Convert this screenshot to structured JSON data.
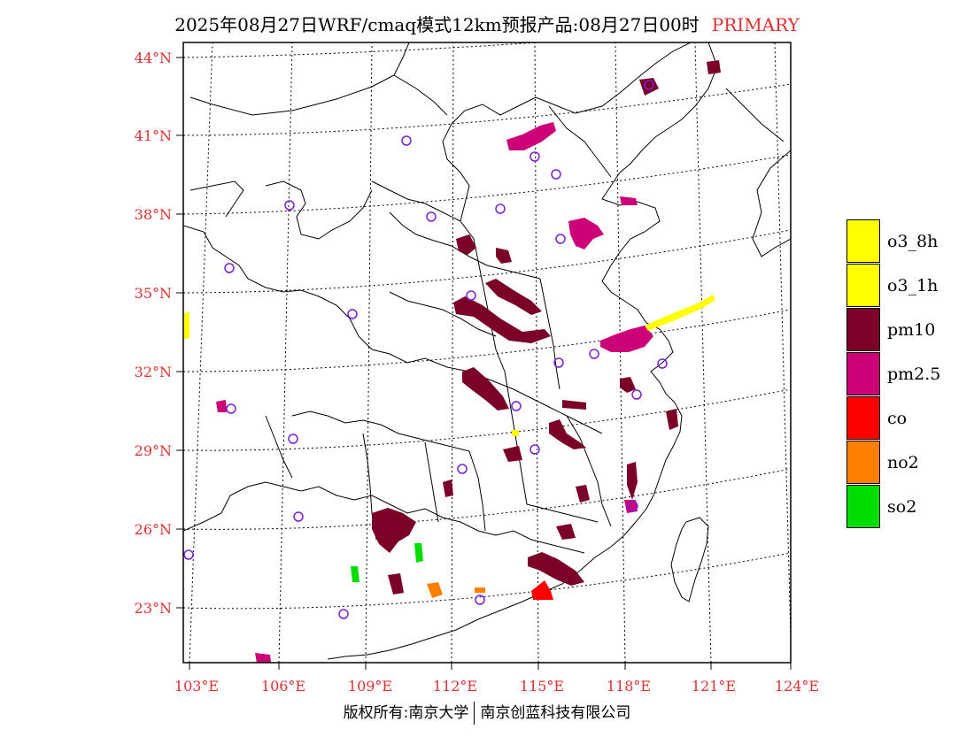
{
  "title": {
    "main": "2025年08月27日WRF/cmaq模式12km预报产品:08月27日00时",
    "tag": "PRIMARY"
  },
  "axes": {
    "lat_labels": [
      "44°N",
      "41°N",
      "38°N",
      "35°N",
      "32°N",
      "29°N",
      "26°N",
      "23°N"
    ],
    "lon_labels": [
      "103°E",
      "106°E",
      "109°E",
      "112°E",
      "115°E",
      "118°E",
      "121°E",
      "124°E"
    ],
    "label_color": "#e03030"
  },
  "legend": [
    {
      "label": "o3_8h",
      "color": "#ffff00"
    },
    {
      "label": "o3_1h",
      "color": "#ffff00"
    },
    {
      "label": "pm10",
      "color": "#7a0028"
    },
    {
      "label": "pm2.5",
      "color": "#cc0077"
    },
    {
      "label": "co",
      "color": "#ff0000"
    },
    {
      "label": "no2",
      "color": "#ff7f00"
    },
    {
      "label": "so2",
      "color": "#00dd00"
    }
  ],
  "copyright": {
    "left": "版权所有:南京大学",
    "right": "南京创蓝科技有限公司"
  }
}
